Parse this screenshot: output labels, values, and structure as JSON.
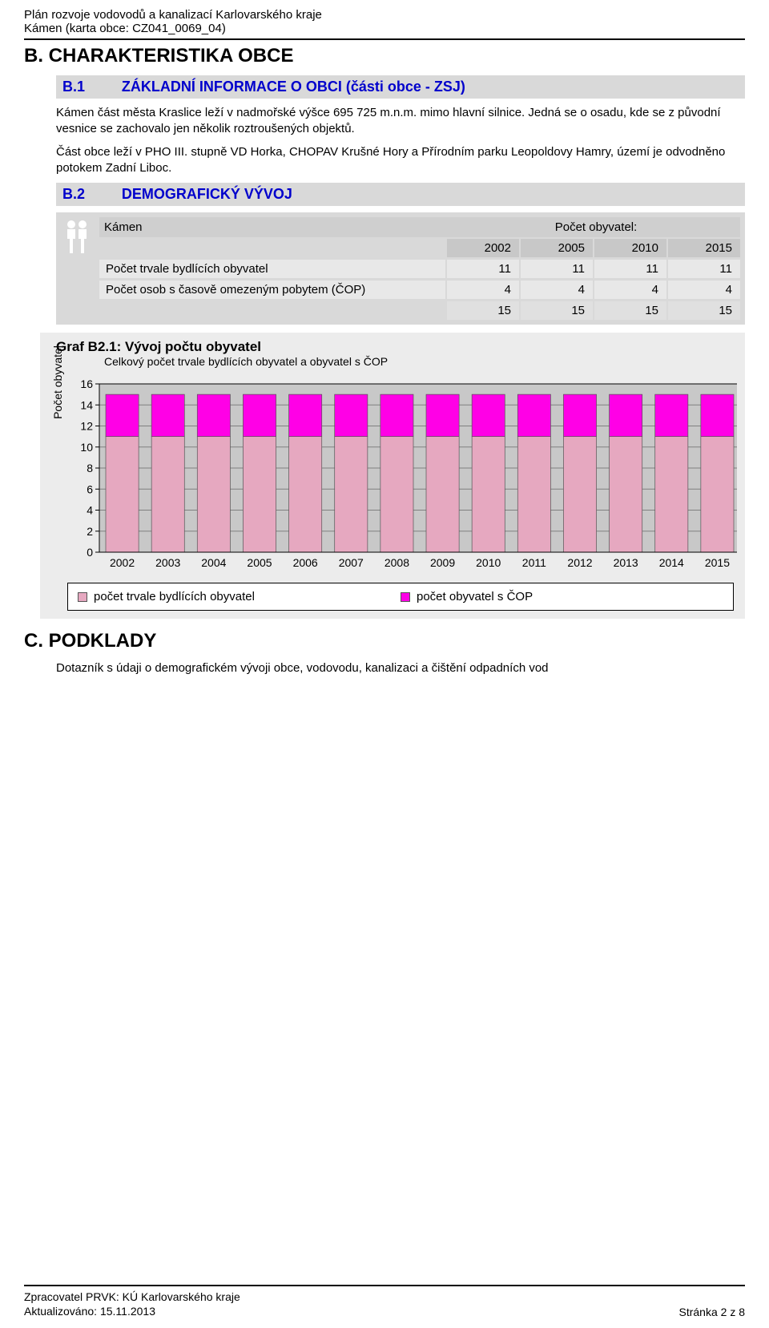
{
  "header": {
    "line1": "Plán rozvoje vodovodů a kanalizací Karlovarského kraje",
    "line2": "Kámen (karta obce: CZ041_0069_04)"
  },
  "section_b": "B. CHARAKTERISTIKA OBCE",
  "b1": {
    "num": "B.1",
    "title": "ZÁKLADNÍ INFORMACE O OBCI (části obce - ZSJ)",
    "para1": "Kámen část města Kraslice leží v nadmořské výšce 695 725 m.n.m. mimo hlavní silnice. Jedná se o osadu, kde se z původní vesnice se zachovalo jen několik roztroušených objektů.",
    "para2": "Část obce leží v PHO III. stupně VD Horka, CHOPAV Krušné Hory a Přírodním parku Leopoldovy Hamry, území je odvodněno potokem Zadní Liboc."
  },
  "b2": {
    "num": "B.2",
    "title": "DEMOGRAFICKÝ VÝVOJ",
    "table": {
      "name": "Kámen",
      "pop_label": "Počet obyvatel:",
      "years": [
        "2002",
        "2005",
        "2010",
        "2015"
      ],
      "rows": [
        {
          "label": "Počet trvale bydlících obyvatel",
          "vals": [
            "11",
            "11",
            "11",
            "11"
          ]
        },
        {
          "label": "Počet osob s časově omezeným pobytem (ČOP)",
          "vals": [
            "4",
            "4",
            "4",
            "4"
          ]
        }
      ],
      "totals": [
        "15",
        "15",
        "15",
        "15"
      ]
    }
  },
  "chart": {
    "title": "Graf B2.1: Vývoj počtu obyvatel",
    "subtitle": "Celkový počet trvale bydlících obyvatel a obyvatel s ČOP",
    "ylabel": "Počet obyvatel",
    "type": "stacked-bar",
    "x_categories": [
      "2002",
      "2003",
      "2004",
      "2005",
      "2006",
      "2007",
      "2008",
      "2009",
      "2010",
      "2011",
      "2012",
      "2013",
      "2014",
      "2015"
    ],
    "series": [
      {
        "name": "počet trvale bydlících obyvatel",
        "color": "#e6a8c0",
        "values": [
          11,
          11,
          11,
          11,
          11,
          11,
          11,
          11,
          11,
          11,
          11,
          11,
          11,
          11
        ]
      },
      {
        "name": "počet obyvatel s ČOP",
        "color": "#ff00e6",
        "values": [
          4,
          4,
          4,
          4,
          4,
          4,
          4,
          4,
          4,
          4,
          4,
          4,
          4,
          4
        ]
      }
    ],
    "ylim": [
      0,
      16
    ],
    "yticks": [
      0,
      2,
      4,
      6,
      8,
      10,
      12,
      14,
      16
    ],
    "plot_bg": "#c8c8c8",
    "grid_color": "#808080",
    "axis_color": "#000000",
    "bar_border": "#555555",
    "label_fontsize": 14,
    "bar_width_ratio": 0.72
  },
  "section_c": "C. PODKLADY",
  "c_text": "Dotazník s údaji o demografickém vývoji obce, vodovodu, kanalizaci a čištění odpadních vod",
  "footer": {
    "l1": "Zpracovatel PRVK: KÚ Karlovarského kraje",
    "l2": "Aktualizováno: 15.11.2013",
    "right": "Stránka 2 z 8"
  }
}
